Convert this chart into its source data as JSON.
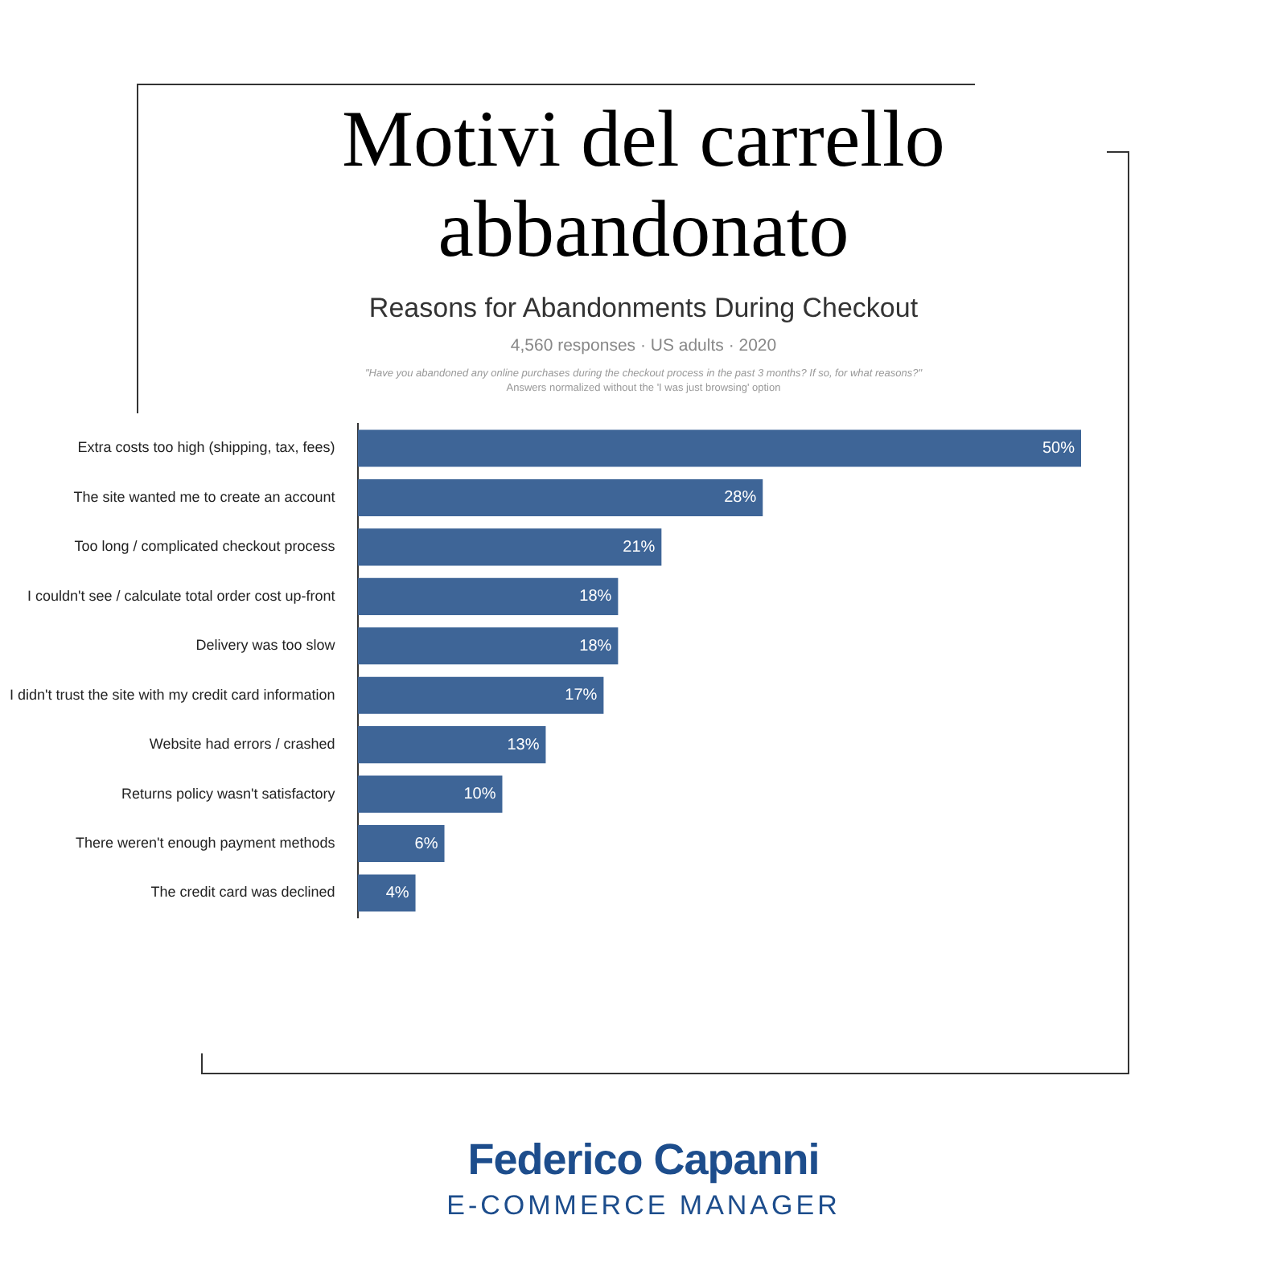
{
  "chart_data": {
    "type": "bar",
    "orientation": "horizontal",
    "title": "Motivi del carrello abbandonato",
    "subtitle": "Reasons for Abandonments During Checkout",
    "annotations": [
      "4,560 responses · US adults · 2020",
      "\"Have you abandoned any online purchases during the checkout process in the past 3 months? If so, for what reasons?\"",
      "Answers normalized without the 'I was just browsing' option",
      "Federico Capanni",
      "E-COMMERCE MANAGER"
    ],
    "categories": [
      "Extra costs too high (shipping, tax, fees)",
      "The site wanted me to create an account",
      "Too long / complicated checkout process",
      "I couldn't see / calculate total order cost up-front",
      "Delivery was too slow",
      "I didn't trust the site with my credit card information",
      "Website had errors / crashed",
      "Returns policy wasn't satisfactory",
      "There weren't enough payment methods",
      "The credit card was declined"
    ],
    "values": [
      50,
      28,
      21,
      18,
      18,
      17,
      13,
      10,
      6,
      4
    ],
    "value_labels": [
      "50%",
      "28%",
      "21%",
      "18%",
      "18%",
      "17%",
      "13%",
      "10%",
      "6%",
      "4%"
    ],
    "color": "#3e6597",
    "legend": false
  }
}
